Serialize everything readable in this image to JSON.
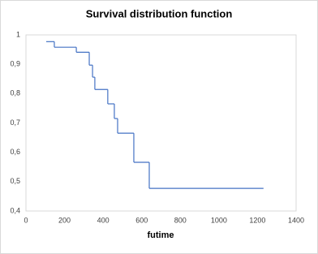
{
  "chart_data": {
    "type": "step",
    "title": "Survival distribution function",
    "x_label": "futime",
    "x": [
      105,
      147,
      261,
      328,
      345,
      357,
      424,
      458,
      475,
      559,
      639,
      1231
    ],
    "values": [
      0.977,
      0.958,
      0.941,
      0.897,
      0.856,
      0.814,
      0.765,
      0.715,
      0.665,
      0.566,
      0.477,
      0.477
    ],
    "color": "#4472c4",
    "xlim": [
      0,
      1400
    ],
    "xticks": [
      0,
      200,
      400,
      600,
      800,
      1000,
      1200,
      1400
    ],
    "ylim": [
      0.4,
      1
    ],
    "yticks": [
      {
        "value": 0.4,
        "label": "0,4"
      },
      {
        "value": 0.5,
        "label": "0,5"
      },
      {
        "value": 0.6,
        "label": "0,6"
      },
      {
        "value": 0.7,
        "label": "0,7"
      },
      {
        "value": 0.8,
        "label": "0,8"
      },
      {
        "value": 0.9,
        "label": "0,9"
      },
      1
    ],
    "grid": false
  }
}
